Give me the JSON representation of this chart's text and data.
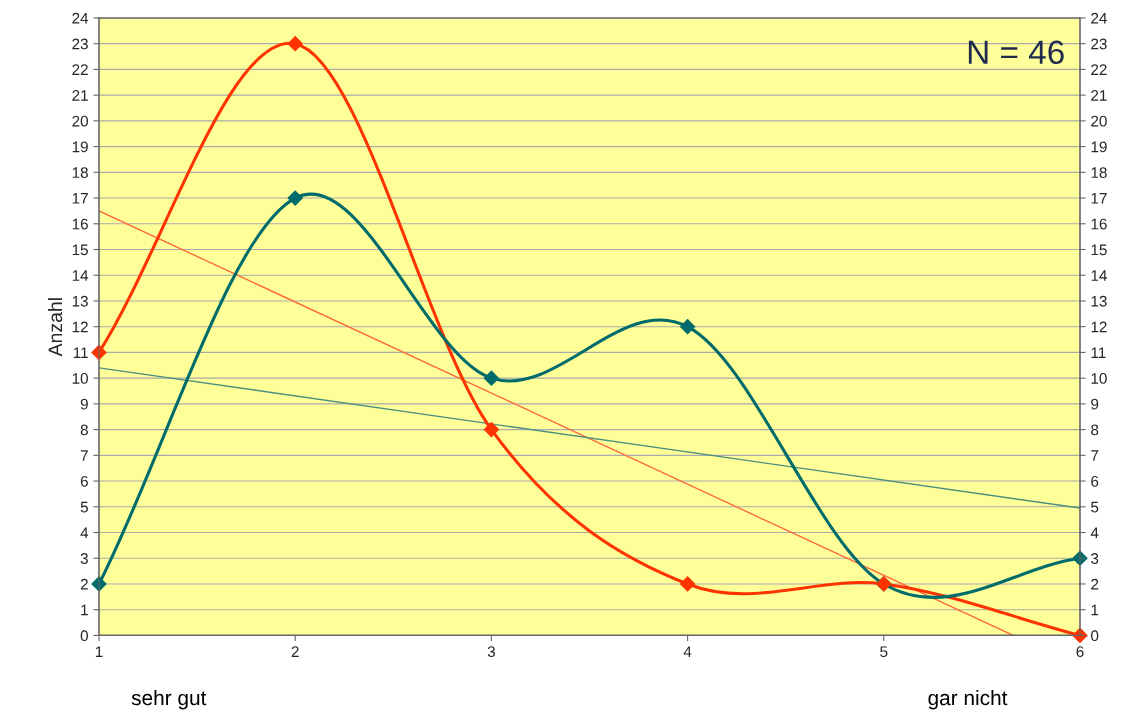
{
  "chart_data": {
    "type": "line",
    "ylabel": "Anzahl",
    "x": [
      1,
      2,
      3,
      4,
      5,
      6
    ],
    "series": [
      {
        "color": "#ff3300",
        "values": [
          11,
          23,
          8,
          2,
          2,
          0
        ],
        "marker": "diamond"
      },
      {
        "color": "#006b6b",
        "values": [
          2,
          17,
          10,
          12,
          2,
          3
        ],
        "marker": "diamond"
      },
      {
        "type": "line",
        "color": "#ff6a3d",
        "x": [
          1,
          5.66
        ],
        "values": [
          16.5,
          0
        ],
        "marker": "none"
      },
      {
        "type": "line",
        "color": "#4d8f80",
        "x": [
          1,
          6
        ],
        "values": [
          10.4,
          4.95
        ],
        "marker": "none"
      }
    ],
    "xlim": [
      1,
      6
    ],
    "xticks": [
      1,
      2,
      3,
      4,
      5,
      6
    ],
    "ylim": [
      0,
      24
    ],
    "yticks": [
      0,
      1,
      2,
      3,
      4,
      5,
      6,
      7,
      8,
      9,
      10,
      11,
      12,
      13,
      14,
      15,
      16,
      17,
      18,
      19,
      20,
      21,
      22,
      23,
      24
    ],
    "y2lim": [
      0,
      24
    ],
    "y2ticks": [
      0,
      1,
      2,
      3,
      4,
      5,
      6,
      7,
      8,
      9,
      10,
      11,
      12,
      13,
      14,
      15,
      16,
      17,
      18,
      19,
      20,
      21,
      22,
      23,
      24
    ],
    "grid": "y",
    "legend": false,
    "annotations": [
      "N = 46",
      "sehr gut",
      "gar nicht"
    ]
  }
}
